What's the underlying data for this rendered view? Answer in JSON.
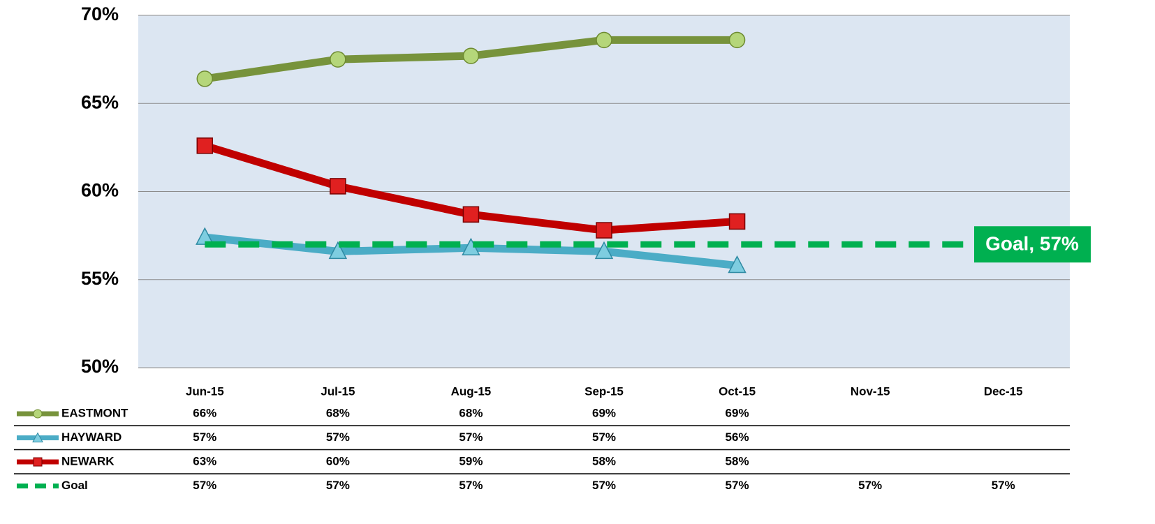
{
  "chart_data": {
    "type": "line",
    "categories": [
      "Jun-15",
      "Jul-15",
      "Aug-15",
      "Sep-15",
      "Oct-15",
      "Nov-15",
      "Dec-15"
    ],
    "series": [
      {
        "name": "EASTMONT",
        "color": "#77933c",
        "marker": "circle",
        "values": [
          66.4,
          67.5,
          67.7,
          68.6,
          68.6,
          null,
          null
        ],
        "value_labels": [
          "66%",
          "68%",
          "68%",
          "69%",
          "69%",
          null,
          null
        ]
      },
      {
        "name": "HAYWARD",
        "color": "#4bacc6",
        "marker": "triangle",
        "values": [
          57.4,
          56.6,
          56.8,
          56.6,
          55.8,
          null,
          null
        ],
        "value_labels": [
          "57%",
          "57%",
          "57%",
          "57%",
          "56%",
          null,
          null
        ]
      },
      {
        "name": "NEWARK",
        "color": "#c00000",
        "marker": "square",
        "values": [
          62.6,
          60.3,
          58.7,
          57.8,
          58.3,
          null,
          null
        ],
        "value_labels": [
          "63%",
          "60%",
          "59%",
          "58%",
          "58%",
          null,
          null
        ]
      },
      {
        "name": "Goal",
        "color": "#00b050",
        "marker": "none",
        "dashed": true,
        "values": [
          57,
          57,
          57,
          57,
          57,
          57,
          57
        ],
        "value_labels": [
          "57%",
          "57%",
          "57%",
          "57%",
          "57%",
          "57%",
          "57%"
        ]
      }
    ],
    "annotation": "Goal, 57%",
    "ylim": [
      50,
      70
    ],
    "yticks": [
      {
        "value": 50,
        "label": "50%"
      },
      {
        "value": 55,
        "label": "55%"
      },
      {
        "value": 60,
        "label": "60%"
      },
      {
        "value": 65,
        "label": "65%"
      },
      {
        "value": 70,
        "label": "70%"
      }
    ],
    "grid": true
  }
}
